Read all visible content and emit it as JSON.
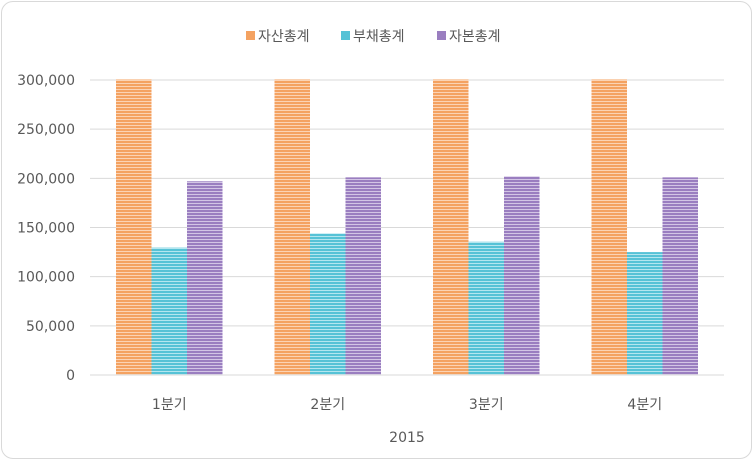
{
  "chart_data": {
    "type": "bar",
    "title": "",
    "categories": [
      "1분기",
      "2분기",
      "3분기",
      "4분기"
    ],
    "series": [
      {
        "name": "자산총계",
        "values": [
          300500,
          300500,
          300500,
          300500
        ],
        "color": "#F4A261"
      },
      {
        "name": "부채총계",
        "values": [
          129500,
          144000,
          135500,
          125000
        ],
        "color": "#56C2D6"
      },
      {
        "name": "자본총계",
        "values": [
          197000,
          201000,
          202000,
          201000
        ],
        "color": "#9A7EC0"
      }
    ],
    "xlabel": "2015",
    "ylabel": "",
    "ylim": [
      0,
      300000
    ],
    "yticks": [
      "0",
      "50,000",
      "100,000",
      "150,000",
      "200,000",
      "250,000",
      "300,000"
    ],
    "ytick_values": [
      0,
      50000,
      100000,
      150000,
      200000,
      250000,
      300000
    ],
    "grid": true,
    "legend_position": "top"
  }
}
